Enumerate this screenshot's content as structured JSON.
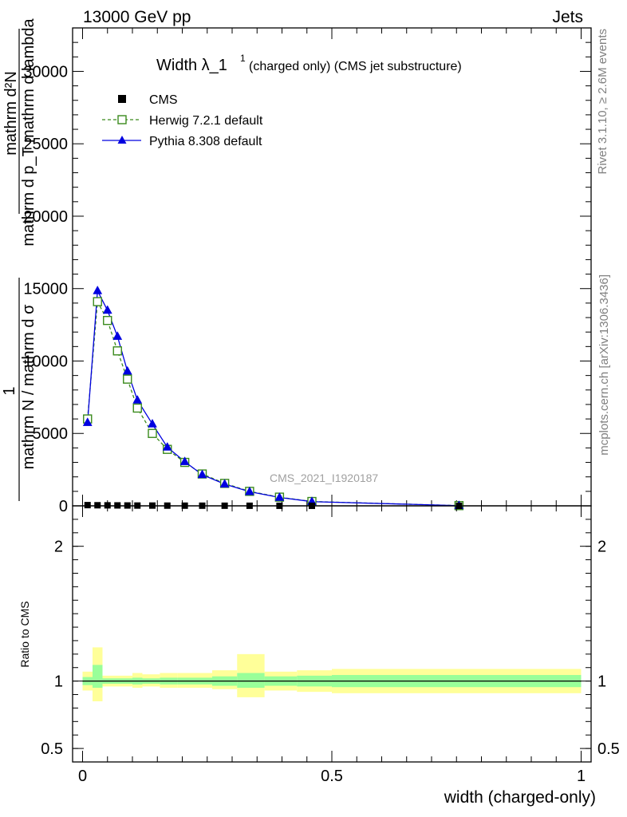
{
  "header": {
    "energy_label": "13000 GeV pp",
    "category_label": "Jets",
    "watermark": "CMS_2021_I1920187",
    "rivet_label": "Rivet 3.1.10, ≥ 2.6M events",
    "mcplots_label": "mcplots.cern.ch [arXiv:1306.3436]"
  },
  "chart_data": [
    {
      "type": "line",
      "title_main": "Width λ_1",
      "title_sup": "1",
      "title_sub": "(charged only) (CMS jet substructure)",
      "ylabel_parts": [
        "mathrm d²N",
        "mathrm d p_T mathrm d lambda",
        "1",
        "mathrm N / mathrm d σ"
      ],
      "ylim": [
        0,
        33000
      ],
      "xlim": [
        -0.02,
        1.02
      ],
      "yticks": [
        0,
        5000,
        10000,
        15000,
        20000,
        25000,
        30000
      ],
      "ytick_labels": [
        "0",
        "5000",
        "10000",
        "15000",
        "20000",
        "25000",
        "30000"
      ],
      "legend_position": "top-left",
      "colors": {
        "cms": "#000000",
        "herwig": "#3a8a1c",
        "pythia": "#0000e0"
      },
      "series": [
        {
          "name": "CMS",
          "marker": "square",
          "x": [
            0.01,
            0.03,
            0.05,
            0.07,
            0.09,
            0.11,
            0.14,
            0.17,
            0.205,
            0.24,
            0.285,
            0.335,
            0.395,
            0.46,
            0.755
          ],
          "y": [
            50,
            40,
            35,
            30,
            25,
            20,
            18,
            15,
            12,
            10,
            8,
            6,
            4,
            2,
            1
          ]
        },
        {
          "name": "Herwig 7.2.1 default",
          "marker": "open-square",
          "x": [
            0.01,
            0.03,
            0.05,
            0.07,
            0.09,
            0.11,
            0.14,
            0.17,
            0.205,
            0.24,
            0.285,
            0.335,
            0.395,
            0.46,
            0.755
          ],
          "y": [
            6000,
            14100,
            12800,
            10700,
            8750,
            6750,
            5000,
            3900,
            3000,
            2200,
            1550,
            1000,
            600,
            300,
            15
          ]
        },
        {
          "name": "Pythia 8.308 default",
          "marker": "triangle",
          "x": [
            0.01,
            0.03,
            0.05,
            0.07,
            0.09,
            0.11,
            0.14,
            0.17,
            0.205,
            0.24,
            0.285,
            0.335,
            0.395,
            0.46,
            0.755
          ],
          "y": [
            5750,
            14850,
            13500,
            11700,
            9300,
            7300,
            5650,
            4050,
            3050,
            2150,
            1500,
            980,
            580,
            290,
            15
          ]
        }
      ]
    },
    {
      "type": "area",
      "ylabel": "Ratio to CMS",
      "xlabel": "width (charged-only)",
      "ylim": [
        0.4,
        2.3
      ],
      "xlim": [
        -0.02,
        1.02
      ],
      "yticks": [
        0.5,
        1,
        2
      ],
      "ytick_labels": [
        "0.5",
        "1",
        "2"
      ],
      "xticks": [
        0,
        0.5,
        1
      ],
      "xtick_labels": [
        "0",
        "0.5",
        "1"
      ],
      "colors": {
        "outer_band": "#ffff99",
        "inner_band": "#99ff99",
        "reference_line": "#000000"
      },
      "bins": [
        {
          "x0": 0.0,
          "x1": 0.02,
          "outer": [
            0.93,
            1.07
          ],
          "inner": [
            0.97,
            1.03
          ]
        },
        {
          "x0": 0.02,
          "x1": 0.04,
          "outer": [
            0.85,
            1.25
          ],
          "inner": [
            0.95,
            1.12
          ]
        },
        {
          "x0": 0.04,
          "x1": 0.06,
          "outer": [
            0.96,
            1.04
          ],
          "inner": [
            0.98,
            1.02
          ]
        },
        {
          "x0": 0.06,
          "x1": 0.08,
          "outer": [
            0.96,
            1.04
          ],
          "inner": [
            0.98,
            1.02
          ]
        },
        {
          "x0": 0.08,
          "x1": 0.1,
          "outer": [
            0.96,
            1.04
          ],
          "inner": [
            0.98,
            1.02
          ]
        },
        {
          "x0": 0.1,
          "x1": 0.12,
          "outer": [
            0.95,
            1.06
          ],
          "inner": [
            0.975,
            1.025
          ]
        },
        {
          "x0": 0.12,
          "x1": 0.155,
          "outer": [
            0.96,
            1.05
          ],
          "inner": [
            0.98,
            1.02
          ]
        },
        {
          "x0": 0.155,
          "x1": 0.19,
          "outer": [
            0.95,
            1.06
          ],
          "inner": [
            0.975,
            1.025
          ]
        },
        {
          "x0": 0.19,
          "x1": 0.26,
          "outer": [
            0.95,
            1.06
          ],
          "inner": [
            0.975,
            1.025
          ]
        },
        {
          "x0": 0.26,
          "x1": 0.31,
          "outer": [
            0.94,
            1.08
          ],
          "inner": [
            0.965,
            1.035
          ]
        },
        {
          "x0": 0.31,
          "x1": 0.365,
          "outer": [
            0.88,
            1.2
          ],
          "inner": [
            0.95,
            1.06
          ]
        },
        {
          "x0": 0.365,
          "x1": 0.43,
          "outer": [
            0.93,
            1.07
          ],
          "inner": [
            0.965,
            1.035
          ]
        },
        {
          "x0": 0.43,
          "x1": 0.5,
          "outer": [
            0.92,
            1.08
          ],
          "inner": [
            0.96,
            1.04
          ]
        },
        {
          "x0": 0.5,
          "x1": 1.0,
          "outer": [
            0.91,
            1.09
          ],
          "inner": [
            0.955,
            1.045
          ]
        }
      ]
    }
  ]
}
